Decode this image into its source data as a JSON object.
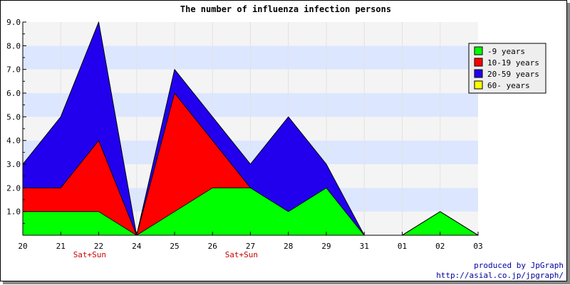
{
  "chart_data": {
    "type": "area",
    "stacked": true,
    "title": "The number of influenza infection persons",
    "categories": [
      "20",
      "21",
      "22",
      "24",
      "25",
      "26",
      "27",
      "28",
      "29",
      "31",
      "01",
      "02",
      "03"
    ],
    "ylim": [
      0,
      9
    ],
    "yticks": [
      "9.0",
      "8.0",
      "7.0",
      "6.0",
      "5.0",
      "4.0",
      "3.0",
      "2.0",
      "1.0"
    ],
    "weekend_marks": [
      {
        "category": "22",
        "label": "Sat+Sun"
      },
      {
        "category": "27",
        "label": "Sat+Sun"
      }
    ],
    "series": [
      {
        "name": "-9 years",
        "color": "#00ff00",
        "values": [
          1,
          1,
          1,
          0,
          1,
          2,
          2,
          1,
          2,
          0,
          0,
          1,
          0
        ]
      },
      {
        "name": "10-19 years",
        "color": "#ff0000",
        "values": [
          1,
          1,
          3,
          0,
          5,
          2,
          0,
          0,
          0,
          0,
          0,
          0,
          0
        ]
      },
      {
        "name": "20-59 years",
        "color": "#2200ee",
        "values": [
          1,
          3,
          5,
          0,
          1,
          1,
          1,
          4,
          1,
          0,
          0,
          0,
          0
        ]
      },
      {
        "name": "60- years",
        "color": "#ffff00",
        "values": [
          0,
          0,
          0,
          0,
          0,
          0,
          0,
          0,
          0,
          0,
          0,
          0,
          0
        ]
      }
    ],
    "legend": "top-right",
    "grid": true
  },
  "credits": {
    "line1": "produced by JpGraph",
    "line2": "http://asial.co.jp/jpgraph/"
  }
}
